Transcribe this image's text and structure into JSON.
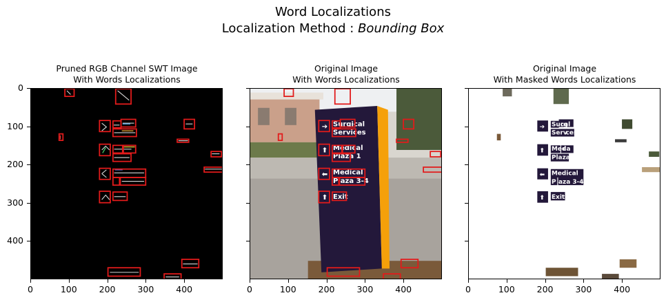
{
  "figure": {
    "title_line1": "Word Localizations",
    "title_line2_prefix": "Localization Method : ",
    "title_line2_method": "Bounding Box"
  },
  "chart_data": [
    {
      "type": "image",
      "title_line1": "Pruned RGB Channel SWT Image",
      "title_line2": "With Words Localizations",
      "xlim": [
        0,
        500
      ],
      "ylim": [
        500,
        0
      ],
      "xticks": [
        0,
        100,
        200,
        300,
        400
      ],
      "yticks": [
        0,
        100,
        200,
        300,
        400
      ],
      "boxes": [
        {
          "x0": 88,
          "y0": 0,
          "x1": 112,
          "y1": 20
        },
        {
          "x0": 220,
          "y0": 0,
          "x1": 260,
          "y1": 40
        },
        {
          "x0": 178,
          "y0": 83,
          "x1": 206,
          "y1": 112
        },
        {
          "x0": 213,
          "y0": 84,
          "x1": 234,
          "y1": 102
        },
        {
          "x0": 234,
          "y0": 80,
          "x1": 272,
          "y1": 100
        },
        {
          "x0": 213,
          "y0": 105,
          "x1": 274,
          "y1": 125
        },
        {
          "x0": 73,
          "y0": 118,
          "x1": 83,
          "y1": 135
        },
        {
          "x0": 398,
          "y0": 80,
          "x1": 425,
          "y1": 105
        },
        {
          "x0": 380,
          "y0": 132,
          "x1": 410,
          "y1": 140
        },
        {
          "x0": 178,
          "y0": 145,
          "x1": 206,
          "y1": 175
        },
        {
          "x0": 213,
          "y0": 148,
          "x1": 238,
          "y1": 168
        },
        {
          "x0": 240,
          "y0": 148,
          "x1": 272,
          "y1": 168
        },
        {
          "x0": 213,
          "y0": 170,
          "x1": 260,
          "y1": 190
        },
        {
          "x0": 468,
          "y0": 164,
          "x1": 495,
          "y1": 178
        },
        {
          "x0": 450,
          "y0": 205,
          "x1": 500,
          "y1": 218
        },
        {
          "x0": 178,
          "y0": 208,
          "x1": 206,
          "y1": 237
        },
        {
          "x0": 213,
          "y0": 210,
          "x1": 298,
          "y1": 232
        },
        {
          "x0": 213,
          "y0": 232,
          "x1": 230,
          "y1": 252
        },
        {
          "x0": 232,
          "y0": 232,
          "x1": 298,
          "y1": 252
        },
        {
          "x0": 178,
          "y0": 268,
          "x1": 206,
          "y1": 298
        },
        {
          "x0": 213,
          "y0": 270,
          "x1": 250,
          "y1": 292
        },
        {
          "x0": 200,
          "y0": 468,
          "x1": 284,
          "y1": 490
        },
        {
          "x0": 392,
          "y0": 446,
          "x1": 436,
          "y1": 468
        },
        {
          "x0": 346,
          "y0": 484,
          "x1": 390,
          "y1": 500
        }
      ]
    },
    {
      "type": "image",
      "title_line1": "Original Image",
      "title_line2": "With Words Localizations",
      "xlim": [
        0,
        500
      ],
      "ylim": [
        500,
        0
      ],
      "xticks": [
        0,
        100,
        200,
        300,
        400
      ],
      "yticks": [
        0,
        100,
        200,
        300,
        400
      ],
      "sign_text": [
        "Surgical",
        "Services",
        "Medical",
        "Plaza 1",
        "Medical",
        "Plaza 3-4",
        "Exit"
      ]
    },
    {
      "type": "image",
      "title_line1": "Original Image",
      "title_line2": "With Masked Words Localizations",
      "xlim": [
        0,
        500
      ],
      "ylim": [
        500,
        0
      ],
      "xticks": [
        0,
        100,
        200,
        300,
        400
      ],
      "yticks": [
        0,
        100,
        200,
        300,
        400
      ],
      "masked_text": [
        "Surg",
        "cal",
        "Serv",
        "ces",
        "Med",
        "ca",
        "Plaza",
        "Medical",
        "P",
        "aza 3-4",
        "Exit"
      ]
    }
  ],
  "colors": {
    "box": "#e21b1b",
    "sign_panel": "#23183a",
    "sign_edge": "#f5a00a",
    "sign_text": "#ffffff",
    "sky": "#e9ecef",
    "ground": "#a49f98",
    "building": "#cda48b"
  }
}
